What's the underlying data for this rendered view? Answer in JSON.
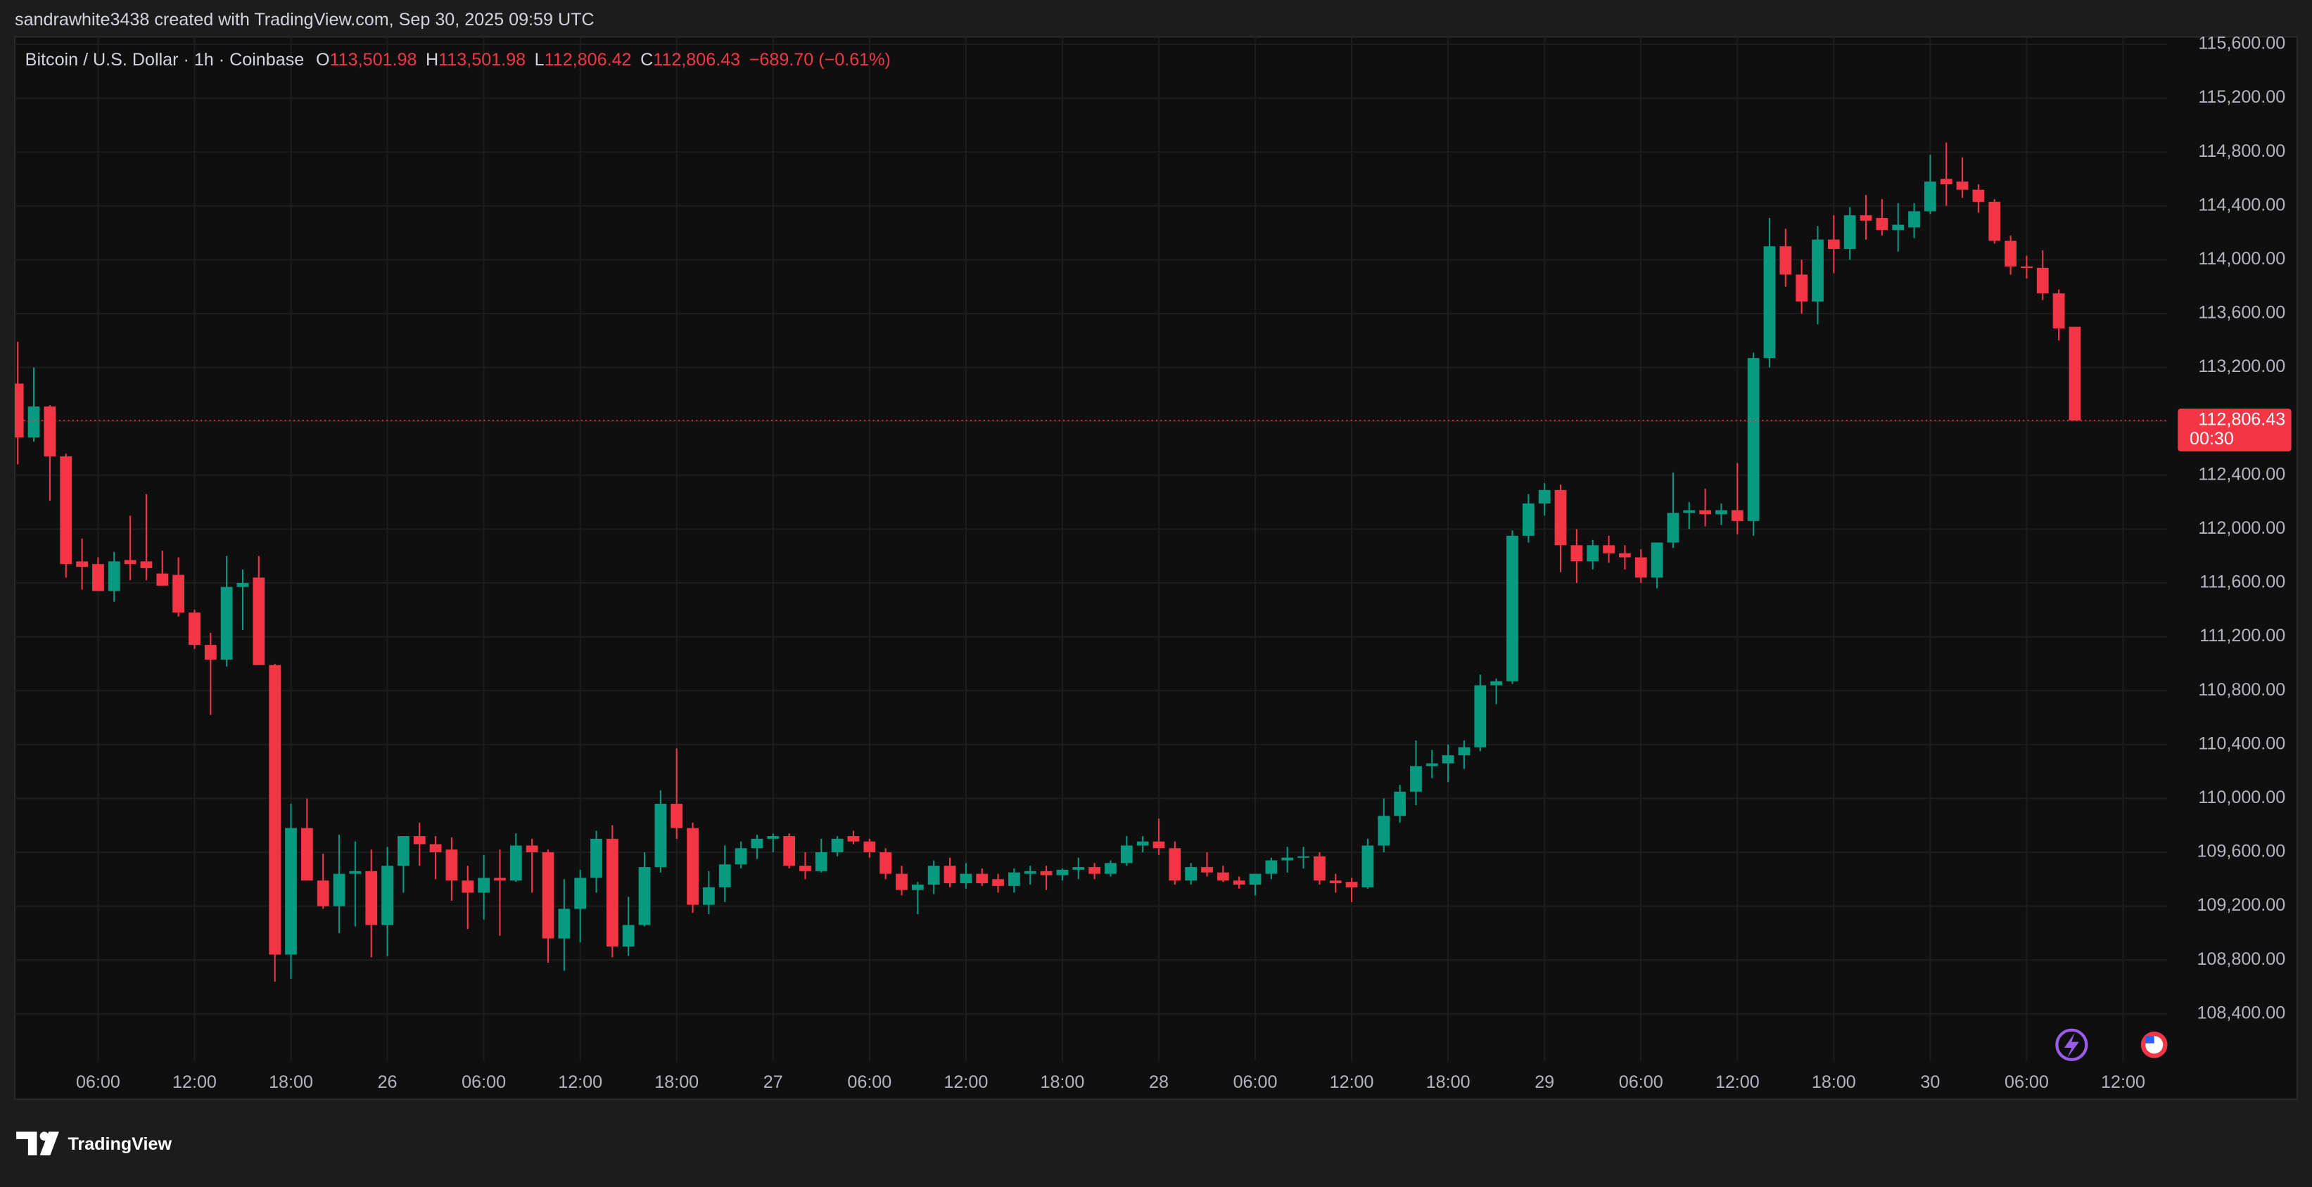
{
  "watermark": "sandrawhite3438 created with TradingView.com, Sep 30, 2025 09:59 UTC",
  "brand": "TradingView",
  "chart_data": {
    "type": "candlestick",
    "title": "Bitcoin / U.S. Dollar · 1h · Coinbase",
    "legend": [
      {
        "label": "O",
        "value": "113,501.98"
      },
      {
        "label": "H",
        "value": "113,501.98"
      },
      {
        "label": "L",
        "value": "112,806.42"
      },
      {
        "label": "C",
        "value": "112,806.43"
      }
    ],
    "change": "−689.70 (−0.61%)",
    "up_color": "#089981",
    "down_color": "#f23645",
    "grid": true,
    "categories": [
      null,
      null,
      null,
      null,
      null,
      "06:00",
      null,
      null,
      null,
      null,
      null,
      "12:00",
      null,
      null,
      null,
      null,
      null,
      "18:00",
      null,
      null,
      null,
      null,
      null,
      "26",
      null,
      null,
      null,
      null,
      null,
      "06:00",
      null,
      null,
      null,
      null,
      null,
      "12:00",
      null,
      null,
      null,
      null,
      null,
      "18:00",
      null,
      null,
      null,
      null,
      null,
      "27",
      null,
      null,
      null,
      null,
      null,
      "06:00",
      null,
      null,
      null,
      null,
      null,
      "12:00",
      null,
      null,
      null,
      null,
      null,
      "18:00",
      null,
      null,
      null,
      null,
      null,
      "28",
      null,
      null,
      null,
      null,
      null,
      "06:00",
      null,
      null,
      null,
      null,
      null,
      "12:00",
      null,
      null,
      null,
      null,
      null,
      "18:00",
      null,
      null,
      null,
      null,
      null,
      "29",
      null,
      null,
      null,
      null,
      null,
      "06:00",
      null,
      null,
      null,
      null,
      null,
      "12:00",
      null,
      null,
      null,
      null,
      null,
      "18:00",
      null,
      null,
      null,
      null,
      null,
      "30",
      null,
      null,
      null,
      null,
      null,
      "06:00",
      null,
      null,
      null,
      null,
      null,
      "12:00"
    ],
    "open": [
      113080,
      112680,
      112910,
      112540,
      111760,
      111740,
      111540,
      111770,
      111760,
      111670,
      111660,
      111380,
      111140,
      111030,
      111570,
      111640,
      110990,
      108840,
      109780,
      109390,
      109200,
      109440,
      109460,
      109060,
      109500,
      109720,
      109660,
      109620,
      109390,
      109300,
      109410,
      109390,
      109650,
      109600,
      108960,
      109180,
      109410,
      109700,
      108900,
      109060,
      109490,
      109960,
      109780,
      109210,
      109340,
      109510,
      109630,
      109700,
      109720,
      109500,
      109460,
      109600,
      109720,
      109680,
      109600,
      109440,
      109320,
      109360,
      109500,
      109370,
      109440,
      109400,
      109350,
      109440,
      109460,
      109430,
      109470,
      109490,
      109440,
      109520,
      109650,
      109680,
      109630,
      109390,
      109490,
      109450,
      109390,
      109360,
      109440,
      109540,
      109560,
      109570,
      109390,
      109380,
      109340,
      109650,
      109870,
      110050,
      110240,
      110260,
      110320,
      110380,
      110840,
      110870,
      111950,
      112190,
      112290,
      111880,
      111760,
      111880,
      111820,
      111790,
      111640,
      111900,
      112120,
      112140,
      112110,
      112140,
      112060,
      113270,
      114100,
      113890,
      113690,
      114150,
      114080,
      114330,
      114310,
      114220,
      114240,
      114360,
      114600,
      114580,
      114520,
      114430,
      114140,
      113950,
      113940,
      113750,
      113501.98,
      null,
      null,
      null
    ],
    "high": [
      113390,
      113200,
      112920,
      112560,
      111930,
      111790,
      111830,
      112100,
      112260,
      111840,
      111790,
      111400,
      111230,
      111800,
      111700,
      111800,
      111000,
      109960,
      110000,
      109590,
      109730,
      109680,
      109620,
      109640,
      109650,
      109820,
      109720,
      109710,
      109500,
      109580,
      109620,
      109740,
      109700,
      109620,
      109400,
      109470,
      109760,
      109800,
      109270,
      109600,
      110060,
      110370,
      109820,
      109460,
      109650,
      109680,
      109730,
      109740,
      109740,
      109600,
      109700,
      109720,
      109760,
      109700,
      109630,
      109500,
      109380,
      109540,
      109560,
      109520,
      109480,
      109440,
      109480,
      109500,
      109500,
      109480,
      109560,
      109520,
      109540,
      109720,
      109720,
      109850,
      109680,
      109520,
      109600,
      109500,
      109420,
      109440,
      109560,
      109640,
      109640,
      109600,
      109440,
      109410,
      109700,
      110000,
      110100,
      110430,
      110360,
      110400,
      110430,
      110920,
      110890,
      111990,
      112260,
      112340,
      112330,
      112000,
      111920,
      111950,
      111880,
      111850,
      111900,
      112420,
      112200,
      112300,
      112190,
      112490,
      113310,
      114310,
      114230,
      114000,
      114250,
      114330,
      114390,
      114480,
      114450,
      114420,
      114420,
      114780,
      114870,
      114760,
      114560,
      114450,
      114180,
      114030,
      114070,
      113780,
      113501.98,
      null,
      null,
      null
    ],
    "low": [
      112480,
      112650,
      112210,
      111640,
      111550,
      111540,
      111460,
      111620,
      111620,
      111580,
      111350,
      111110,
      110620,
      110980,
      111250,
      110990,
      108640,
      108660,
      109390,
      109180,
      109000,
      109050,
      108820,
      108830,
      109300,
      109500,
      109400,
      109240,
      109030,
      109100,
      108980,
      109380,
      109300,
      108780,
      108720,
      108930,
      109300,
      108820,
      108830,
      109050,
      109450,
      109700,
      109150,
      109140,
      109230,
      109480,
      109550,
      109600,
      109480,
      109400,
      109450,
      109570,
      109660,
      109560,
      109400,
      109280,
      109140,
      109290,
      109340,
      109330,
      109350,
      109300,
      109300,
      109360,
      109320,
      109390,
      109400,
      109400,
      109420,
      109500,
      109600,
      109580,
      109360,
      109360,
      109420,
      109380,
      109330,
      109280,
      109400,
      109450,
      109480,
      109360,
      109300,
      109230,
      109330,
      109600,
      109820,
      109950,
      110150,
      110120,
      110220,
      110350,
      110700,
      110850,
      111900,
      112100,
      111680,
      111600,
      111700,
      111750,
      111700,
      111600,
      111560,
      111860,
      112000,
      112020,
      112030,
      111960,
      111950,
      113200,
      113800,
      113600,
      113520,
      113900,
      114000,
      114150,
      114180,
      114060,
      114160,
      114340,
      114400,
      114460,
      114350,
      114120,
      113890,
      113860,
      113700,
      113400,
      112806.42,
      null,
      null,
      null
    ],
    "close": [
      112680,
      112910,
      112540,
      111740,
      111720,
      111540,
      111760,
      111740,
      111710,
      111580,
      111380,
      111140,
      111030,
      111570,
      111600,
      110990,
      108840,
      109780,
      109390,
      109200,
      109440,
      109460,
      109060,
      109500,
      109720,
      109660,
      109600,
      109390,
      109300,
      109410,
      109390,
      109650,
      109600,
      108960,
      109180,
      109410,
      109700,
      108900,
      109060,
      109490,
      109960,
      109780,
      109210,
      109340,
      109510,
      109630,
      109700,
      109720,
      109500,
      109460,
      109600,
      109700,
      109680,
      109600,
      109440,
      109320,
      109360,
      109500,
      109370,
      109440,
      109370,
      109350,
      109450,
      109460,
      109430,
      109470,
      109490,
      109440,
      109520,
      109650,
      109680,
      109630,
      109390,
      109490,
      109450,
      109390,
      109360,
      109440,
      109540,
      109560,
      109570,
      109390,
      109370,
      109340,
      109650,
      109870,
      110050,
      110240,
      110260,
      110320,
      110380,
      110840,
      110870,
      111950,
      112190,
      112290,
      111880,
      111760,
      111880,
      111820,
      111790,
      111640,
      111900,
      112120,
      112140,
      112110,
      112140,
      112060,
      113270,
      114100,
      113890,
      113690,
      114150,
      114080,
      114330,
      114290,
      114220,
      114260,
      114360,
      114580,
      114560,
      114520,
      114430,
      114140,
      113950,
      113940,
      113750,
      113490,
      112806.43,
      null,
      null,
      null
    ],
    "ylim": [
      108050,
      115655
    ],
    "yticks": [
      {
        "value": 108400,
        "label": "108,400.00"
      },
      {
        "value": 108800,
        "label": "108,800.00"
      },
      {
        "value": 109200,
        "label": "109,200.00"
      },
      {
        "value": 109600,
        "label": "109,600.00"
      },
      {
        "value": 110000,
        "label": "110,000.00"
      },
      {
        "value": 110400,
        "label": "110,400.00"
      },
      {
        "value": 110800,
        "label": "110,800.00"
      },
      {
        "value": 111200,
        "label": "111,200.00"
      },
      {
        "value": 111600,
        "label": "111,600.00"
      },
      {
        "value": 112000,
        "label": "112,000.00"
      },
      {
        "value": 112400,
        "label": "112,400.00"
      },
      {
        "value": 112800,
        "label": "112,800.00"
      },
      {
        "value": 113200,
        "label": "113,200.00"
      },
      {
        "value": 113600,
        "label": "113,600.00"
      },
      {
        "value": 114000,
        "label": "114,000.00"
      },
      {
        "value": 114400,
        "label": "114,400.00"
      },
      {
        "value": 114800,
        "label": "114,800.00"
      },
      {
        "value": 115200,
        "label": "115,200.00"
      },
      {
        "value": 115600,
        "label": "115,600.00"
      }
    ],
    "last_price": {
      "value": 112806.43,
      "label": "112,806.43",
      "countdown": "00:30"
    }
  }
}
